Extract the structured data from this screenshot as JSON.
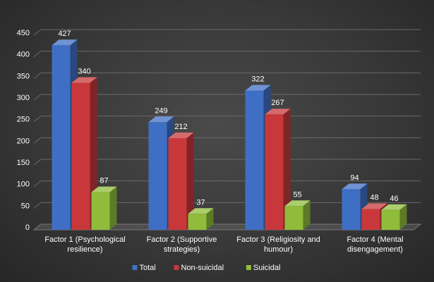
{
  "chart_data": {
    "type": "bar",
    "title": "",
    "xlabel": "",
    "ylabel": "",
    "ylim": [
      0,
      450
    ],
    "yticks": [
      0,
      50,
      100,
      150,
      200,
      250,
      300,
      350,
      400,
      450
    ],
    "grid": true,
    "legend_position": "bottom",
    "categories": [
      [
        "Factor 1  (Psychological",
        "resilience)"
      ],
      [
        "Factor 2  (Supportive",
        "strategies)"
      ],
      [
        "Factor 3  (Religiosity and",
        "humour)"
      ],
      [
        "Factor 4  (Mental",
        "disengagement)"
      ]
    ],
    "series": [
      {
        "name": "Total",
        "color": "#3f6fc4",
        "values": [
          427,
          249,
          322,
          94
        ]
      },
      {
        "name": "Non-suicidal",
        "color": "#c8383a",
        "values": [
          340,
          212,
          267,
          48
        ]
      },
      {
        "name": "Suicidal",
        "color": "#8fbc3a",
        "values": [
          87,
          37,
          55,
          46
        ]
      }
    ]
  }
}
